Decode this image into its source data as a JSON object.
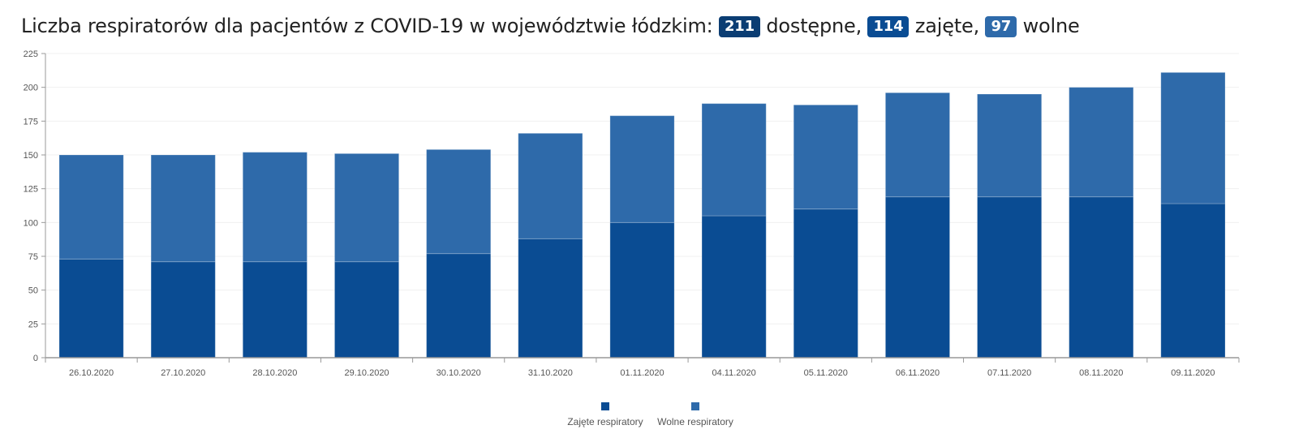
{
  "header": {
    "title_prefix": "Liczba respiratorów dla pacjentów z COVID-19 w województwie łódzkim:",
    "available_value": "211",
    "available_label": "dostępne,",
    "occupied_value": "114",
    "occupied_label": "zajęte,",
    "free_value": "97",
    "free_label": "wolne"
  },
  "colors": {
    "available_badge": "#0b3d73",
    "occupied": "#0a4c93",
    "free": "#2e6aaa"
  },
  "chart_data": {
    "type": "bar",
    "stacked": true,
    "categories": [
      "26.10.2020",
      "27.10.2020",
      "28.10.2020",
      "29.10.2020",
      "30.10.2020",
      "31.10.2020",
      "01.11.2020",
      "04.11.2020",
      "05.11.2020",
      "06.11.2020",
      "07.11.2020",
      "08.11.2020",
      "09.11.2020"
    ],
    "series": [
      {
        "name": "Zajęte respiratory",
        "color": "#0a4c93",
        "values": [
          73,
          71,
          71,
          71,
          77,
          88,
          100,
          105,
          110,
          119,
          119,
          119,
          114
        ]
      },
      {
        "name": "Wolne respiratory",
        "color": "#2e6aaa",
        "values": [
          77,
          79,
          81,
          80,
          77,
          78,
          79,
          83,
          77,
          77,
          76,
          81,
          97
        ]
      }
    ],
    "ylim": [
      0,
      225
    ],
    "yticks": [
      0,
      25,
      50,
      75,
      100,
      125,
      150,
      175,
      200,
      225
    ],
    "grid": true,
    "legend": "bottom-center"
  }
}
